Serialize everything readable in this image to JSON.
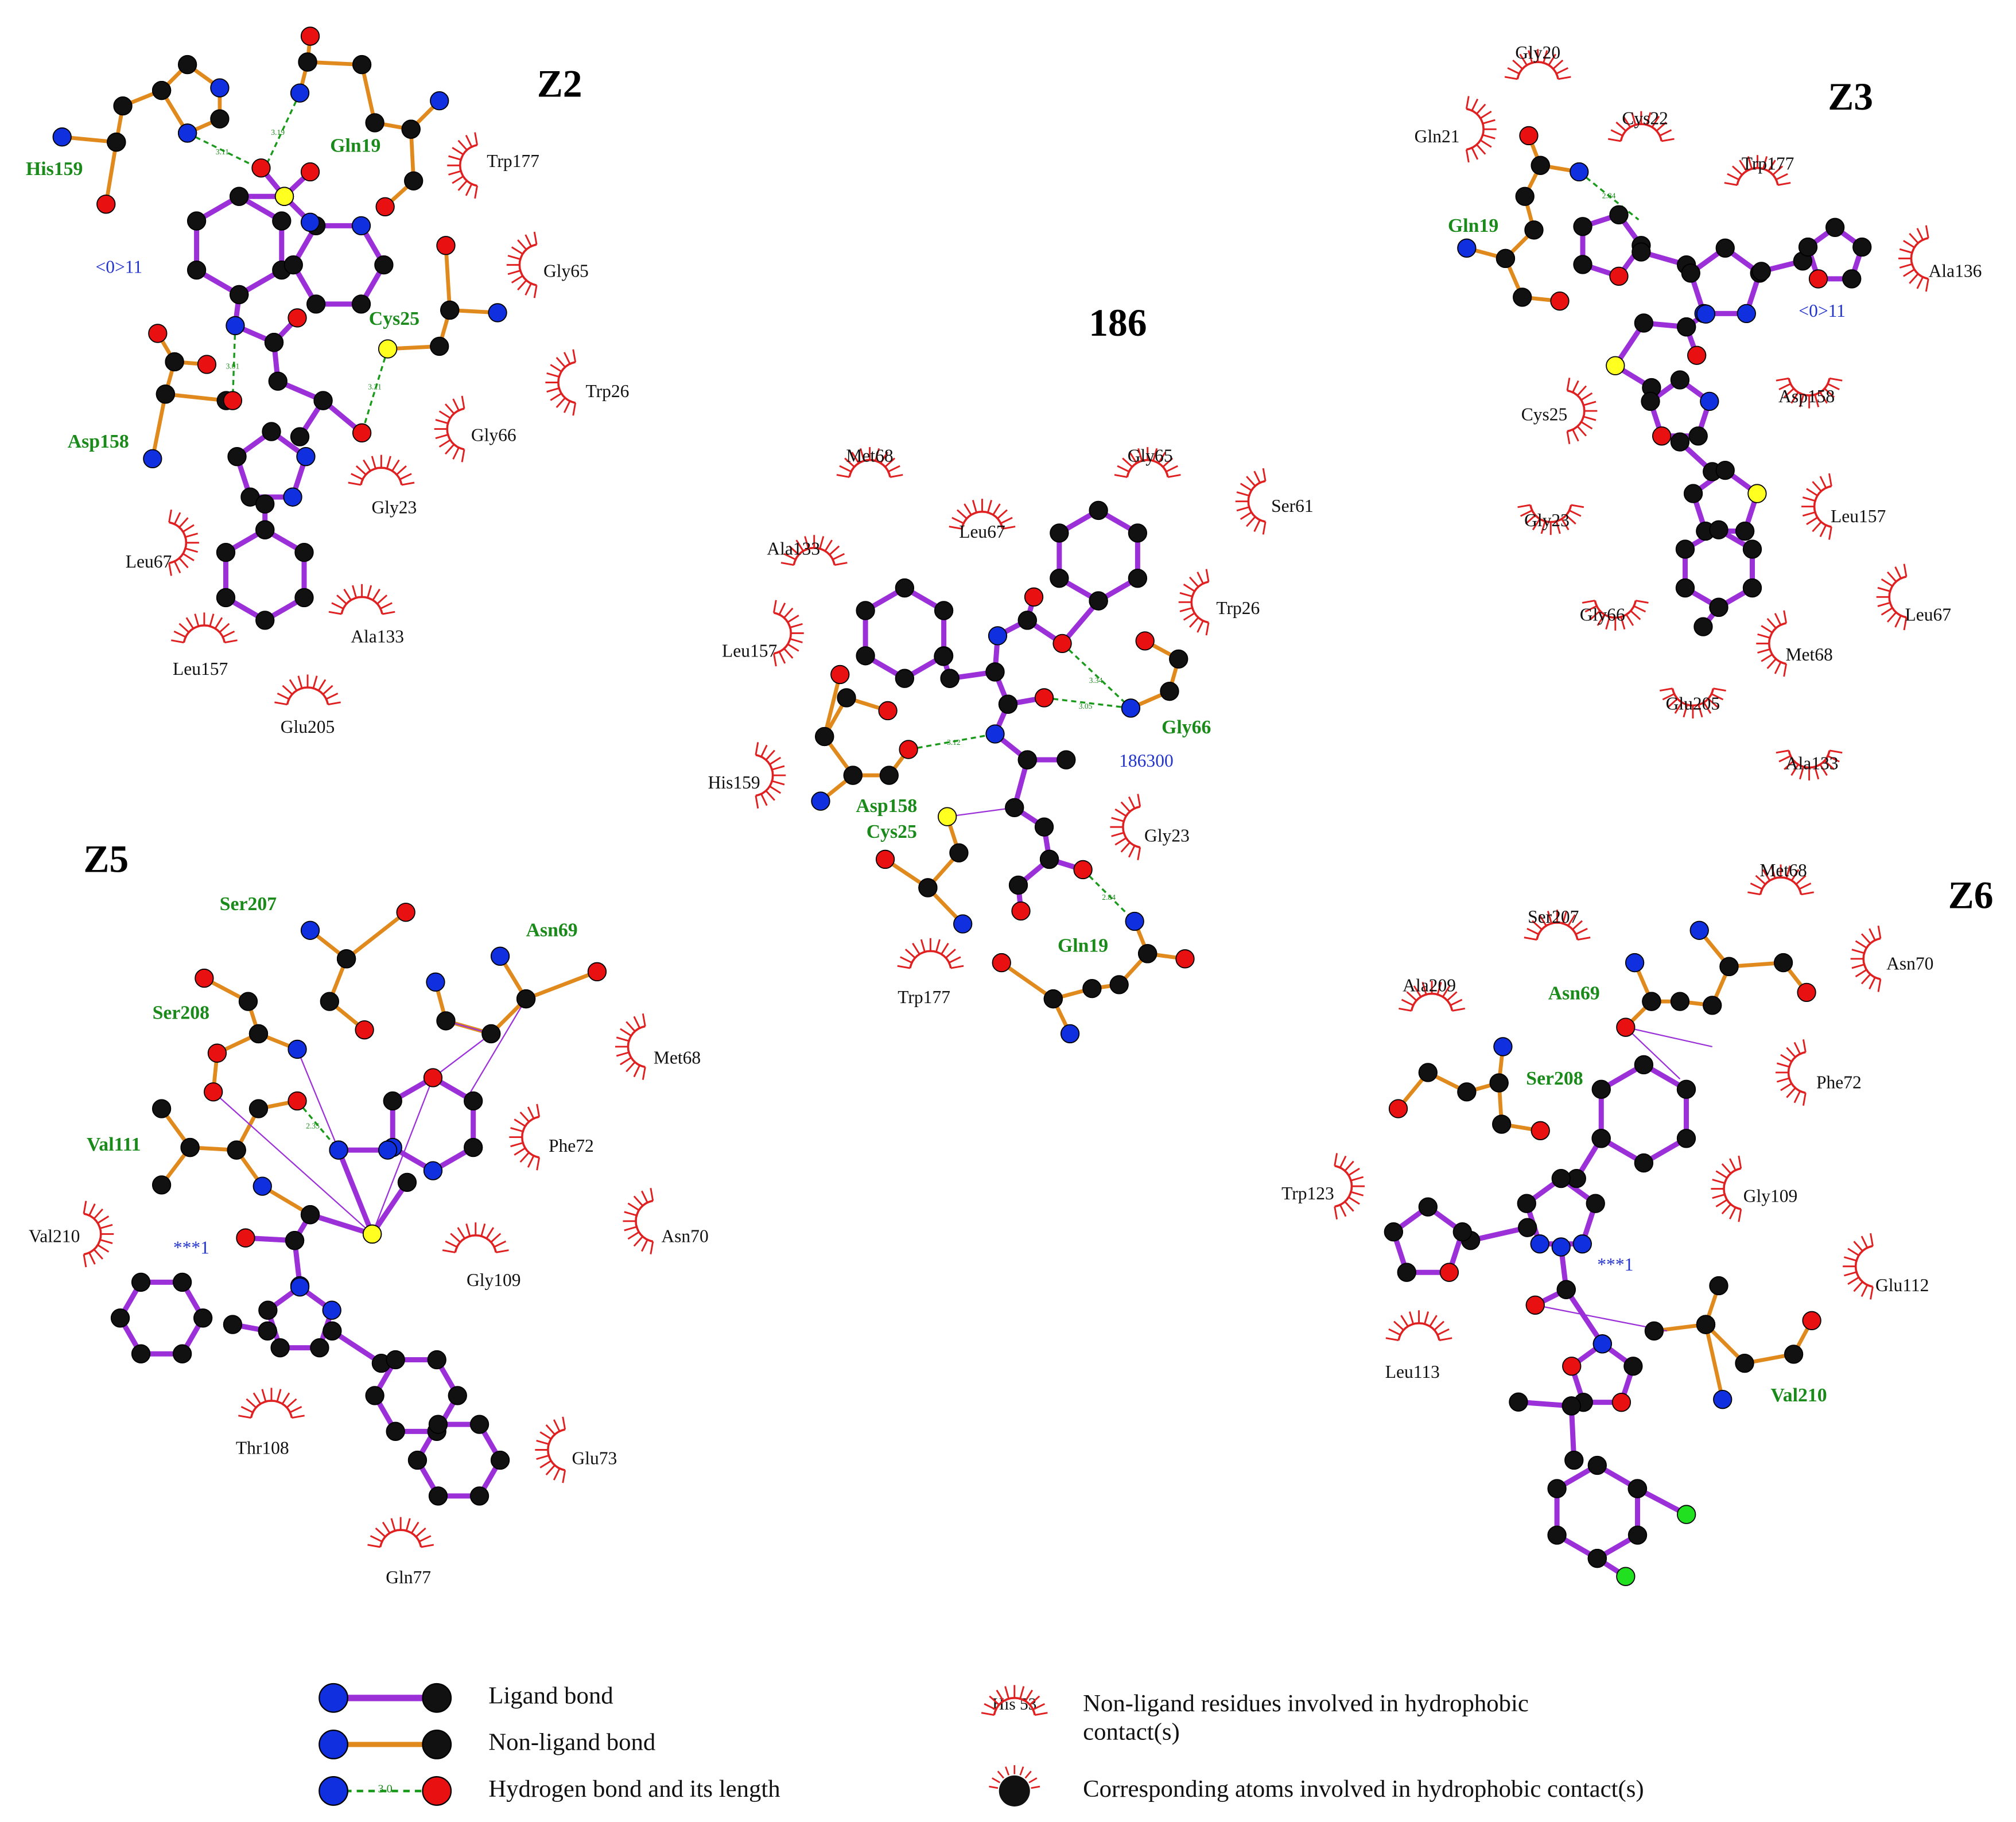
{
  "panels": [
    {
      "title": "Z2",
      "hbond_residues": [
        "His159",
        "Gln19",
        "Cys25",
        "Asp158"
      ],
      "hydrophobic_residues": [
        "Trp177",
        "Gly65",
        "Trp26",
        "Gly66",
        "Gly23",
        "Leu67",
        "Ala133",
        "Leu157",
        "Glu205"
      ],
      "ligand_label": "<0>11",
      "distances": [
        3.11,
        3.19,
        3.01,
        3.21
      ]
    },
    {
      "title": "186",
      "hbond_residues": [
        "Gly66",
        "Asp158",
        "Cys25",
        "Gln19"
      ],
      "hydrophobic_residues": [
        "Met68",
        "Gly65",
        "Ser61",
        "Ala133",
        "Leu67",
        "Trp26",
        "Leu157",
        "His159",
        "Gly23",
        "Trp177"
      ],
      "ligand_label": "186300",
      "distances": [
        3.34,
        3.05,
        3.12,
        2.84
      ]
    },
    {
      "title": "Z3",
      "hbond_residues": [
        "Gln19"
      ],
      "hydrophobic_residues": [
        "Gly20",
        "Gln21",
        "Cys22",
        "Trp177",
        "Ala136",
        "Asp158",
        "Cys25",
        "Leu157",
        "Gly23",
        "Gly66",
        "Leu67",
        "Met68",
        "Glu205",
        "Ala133"
      ],
      "ligand_label": "<0>11",
      "distances": [
        2.84
      ]
    },
    {
      "title": "Z5",
      "hbond_residues": [
        "Ser207",
        "Asn69",
        "Ser208",
        "Val111"
      ],
      "hydrophobic_residues": [
        "Met68",
        "Phe72",
        "Val210",
        "Asn70",
        "Gly109",
        "Thr108",
        "Glu73",
        "Gln77"
      ],
      "ligand_label": "***1",
      "distances": [
        2.35
      ]
    },
    {
      "title": "Z6",
      "hbond_residues": [
        "Asn69",
        "Ser208",
        "Val210"
      ],
      "hydrophobic_residues": [
        "Met68",
        "Ser207",
        "Asn70",
        "Ala209",
        "Phe72",
        "Trp123",
        "Gly109",
        "Glu112",
        "Leu113"
      ],
      "ligand_label": "***1",
      "distances": []
    }
  ],
  "legend": {
    "items": [
      "Ligand bond",
      "Non-ligand bond",
      "Hydrogen bond and its length"
    ],
    "hbond_length": "3.0",
    "hydrophobic_example": "His 53",
    "hydrophobic_residues": [
      "Non-ligand residues involved in hydrophobic",
      "contact(s)"
    ],
    "hydrophobic_atoms": "Corresponding atoms involved in hydrophobic contact(s)"
  }
}
